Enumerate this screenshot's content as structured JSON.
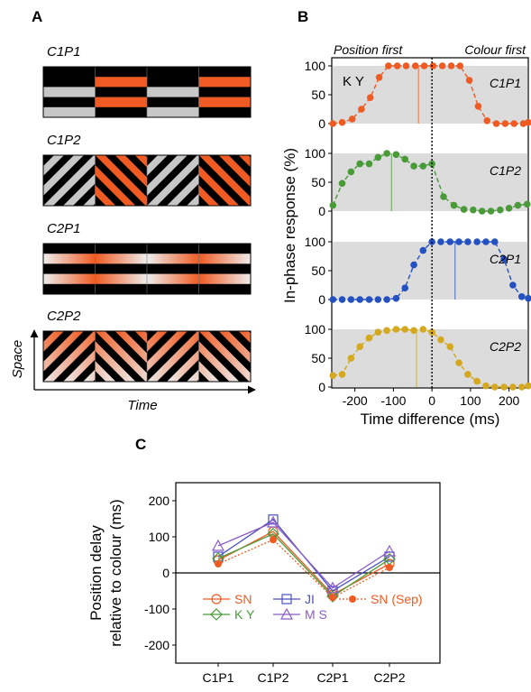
{
  "panelA": {
    "letter": "A",
    "conditions": [
      "C1P1",
      "C1P2",
      "C2P1",
      "C2P2"
    ],
    "space_label": "Space",
    "time_label": "Time",
    "colors": {
      "orange": "#ef5b22",
      "black": "#000000",
      "grey": "#c7c7c7"
    }
  },
  "panelB": {
    "letter": "B",
    "position_first": "Position  first",
    "colour_first": "Colour first",
    "subject": "K Y",
    "ylabel": "In-phase response (%)",
    "xlabel": "Time difference (ms)"
  },
  "panelC": {
    "letter": "C",
    "ylabel_line1": "Position delay",
    "ylabel_line2": "relative to colour (ms)"
  },
  "chart_data": [
    {
      "id": "B",
      "type": "scatter",
      "xlabel": "Time difference (ms)",
      "ylabel": "In-phase response (%)",
      "xlim": [
        -260,
        250
      ],
      "ylim": [
        0,
        100
      ],
      "xticks": [
        -200,
        -100,
        0,
        100,
        200
      ],
      "yticks": [
        0,
        50,
        100
      ],
      "subpanels": [
        {
          "name": "C1P1",
          "color": "#ef5b22",
          "x": [
            -257,
            -233,
            -207,
            -183,
            -160,
            -137,
            -113,
            -90,
            -67,
            -43,
            -20,
            3,
            27,
            50,
            73,
            97,
            120,
            143,
            167,
            190,
            213,
            237,
            250
          ],
          "y": [
            0,
            2,
            8,
            25,
            45,
            80,
            100,
            100,
            100,
            100,
            100,
            100,
            100,
            100,
            100,
            75,
            30,
            5,
            0,
            0,
            0,
            0,
            2
          ],
          "pse": -35
        },
        {
          "name": "C1P2",
          "color": "#4a9a3a",
          "x": [
            -257,
            -233,
            -210,
            -187,
            -163,
            -140,
            -117,
            -93,
            -70,
            -47,
            -23,
            0,
            30,
            57,
            83,
            107,
            130,
            153,
            177,
            200,
            223,
            247
          ],
          "y": [
            10,
            48,
            68,
            82,
            82,
            93,
            100,
            98,
            90,
            78,
            78,
            82,
            25,
            10,
            3,
            2,
            0,
            0,
            2,
            5,
            10,
            12
          ],
          "pse": -105
        },
        {
          "name": "C2P1",
          "color": "#2450c0",
          "x": [
            -257,
            -233,
            -210,
            -187,
            -163,
            -140,
            -117,
            -93,
            -70,
            -47,
            -23,
            0,
            23,
            47,
            70,
            93,
            117,
            140,
            163,
            187,
            210,
            233,
            250
          ],
          "y": [
            0,
            0,
            0,
            0,
            0,
            0,
            0,
            2,
            20,
            60,
            85,
            100,
            100,
            100,
            100,
            100,
            100,
            100,
            100,
            70,
            25,
            5,
            2
          ],
          "pse": 60
        },
        {
          "name": "C2P2",
          "color": "#d4a820",
          "x": [
            -257,
            -233,
            -210,
            -187,
            -163,
            -140,
            -117,
            -93,
            -70,
            -47,
            -23,
            0,
            23,
            47,
            70,
            93,
            117,
            140,
            163,
            187,
            210,
            233,
            250
          ],
          "y": [
            20,
            22,
            50,
            70,
            85,
            95,
            98,
            100,
            100,
            98,
            100,
            95,
            82,
            70,
            42,
            22,
            10,
            2,
            0,
            0,
            0,
            0,
            2
          ],
          "pse": -40
        }
      ]
    },
    {
      "id": "C",
      "type": "line",
      "categories": [
        "C1P1",
        "C1P2",
        "C2P1",
        "C2P2"
      ],
      "ylabel": "Position delay relative to colour (ms)",
      "ylim": [
        -250,
        250
      ],
      "yticks": [
        -200,
        -100,
        0,
        100,
        200
      ],
      "series": [
        {
          "name": "SN",
          "color": "#ef5b22",
          "marker": "circle-open",
          "dash": "solid",
          "values": [
            35,
            115,
            -60,
            25
          ]
        },
        {
          "name": "JI",
          "color": "#4a4fc0",
          "marker": "square-open",
          "dash": "solid",
          "values": [
            45,
            148,
            -50,
            45
          ]
        },
        {
          "name": "K Y",
          "color": "#4a9a3a",
          "marker": "diamond-open",
          "dash": "solid",
          "values": [
            40,
            108,
            -65,
            38
          ]
        },
        {
          "name": "M S",
          "color": "#8a5cc8",
          "marker": "triangle-open",
          "dash": "solid",
          "values": [
            75,
            140,
            -42,
            60
          ]
        },
        {
          "name": "SN (Sep)",
          "color": "#ef5b22",
          "marker": "circle-filled",
          "dash": "dotted",
          "values": [
            25,
            92,
            -68,
            15
          ]
        }
      ]
    }
  ]
}
